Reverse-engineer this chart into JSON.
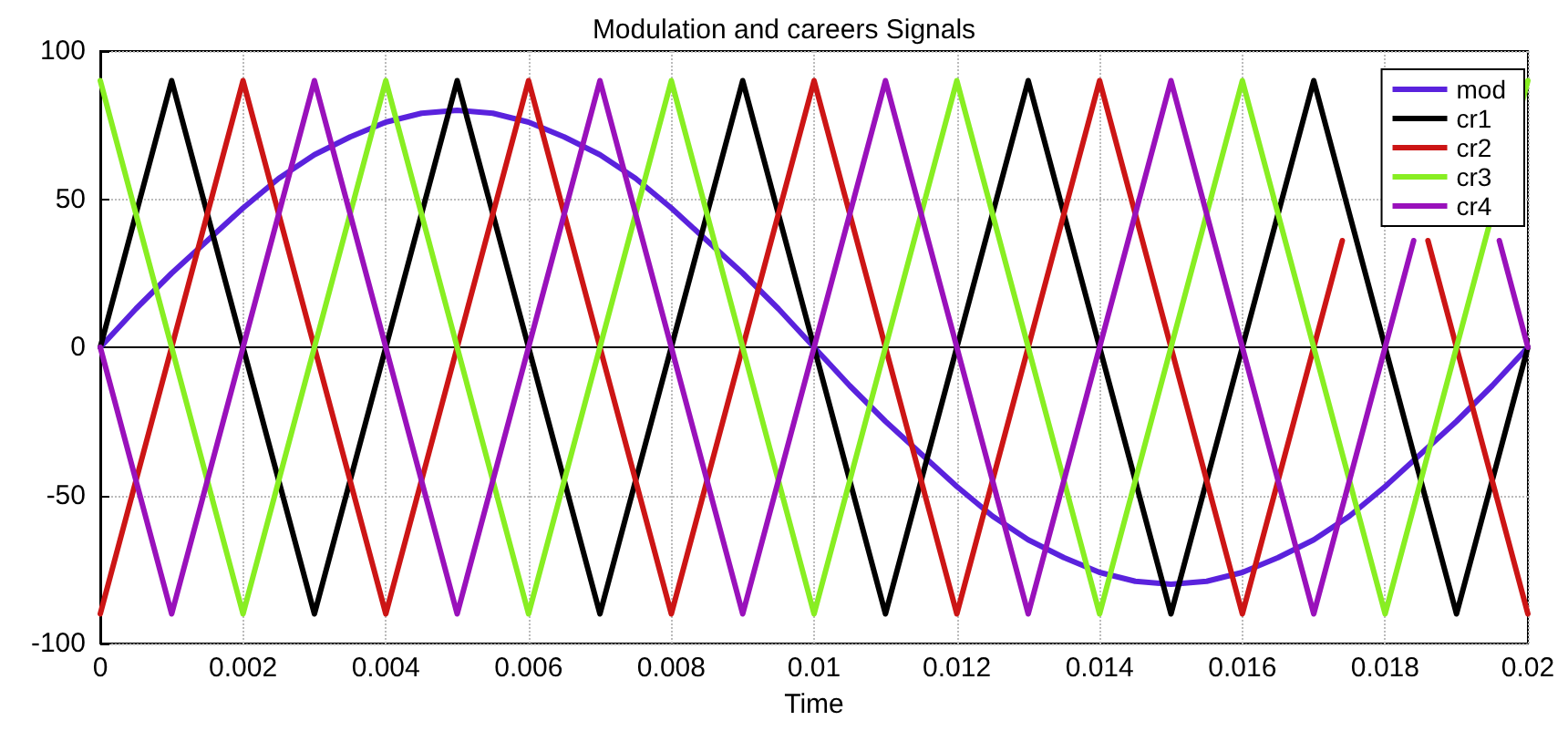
{
  "chart_data": {
    "type": "line",
    "title": "Modulation and careers Signals",
    "xlabel": "Time",
    "xlim": [
      0,
      0.02
    ],
    "xticks": [
      0,
      0.002,
      0.004,
      0.006,
      0.008,
      0.01,
      0.012,
      0.014,
      0.016,
      0.018,
      0.02
    ],
    "ylim": [
      -100,
      100
    ],
    "yticks": [
      -100,
      -50,
      0,
      50,
      100
    ],
    "grid": true,
    "legend": "top right",
    "marker": "none",
    "line_style": "solid",
    "series": [
      {
        "name": "mod",
        "color": "#5a22dd",
        "x": [
          0,
          0.0005,
          0.001,
          0.0015,
          0.002,
          0.0025,
          0.003,
          0.0035,
          0.004,
          0.0045,
          0.005,
          0.0055,
          0.006,
          0.0065,
          0.007,
          0.0075,
          0.008,
          0.0085,
          0.009,
          0.0095,
          0.01,
          0.0105,
          0.011,
          0.0115,
          0.012,
          0.0125,
          0.013,
          0.0135,
          0.014,
          0.0145,
          0.015,
          0.0155,
          0.016,
          0.0165,
          0.017,
          0.0175,
          0.018,
          0.0185,
          0.019,
          0.0195,
          0.02
        ],
        "values": [
          0,
          13,
          25,
          36,
          47,
          57,
          65,
          71,
          76,
          79,
          80,
          79,
          76,
          71,
          65,
          57,
          47,
          36,
          25,
          13,
          0,
          -13,
          -25,
          -36,
          -47,
          -57,
          -65,
          -71,
          -76,
          -79,
          -80,
          -79,
          -76,
          -71,
          -65,
          -57,
          -47,
          -36,
          -25,
          -13,
          0
        ]
      },
      {
        "name": "cr1",
        "color": "#000000",
        "x": [
          0,
          0.001,
          0.003,
          0.005,
          0.007,
          0.009,
          0.011,
          0.013,
          0.015,
          0.017,
          0.019,
          0.02
        ],
        "values": [
          0,
          90,
          -90,
          90,
          -90,
          90,
          -90,
          90,
          -90,
          90,
          -90,
          0
        ]
      },
      {
        "name": "cr2",
        "color": "#cc1515",
        "x": [
          0,
          0.002,
          0.004,
          0.006,
          0.008,
          0.01,
          0.012,
          0.014,
          0.016,
          0.0174,
          0.018,
          0.0186,
          0.02
        ],
        "values": [
          -90,
          90,
          -90,
          90,
          -90,
          90,
          -90,
          90,
          -90,
          36,
          null,
          36,
          -90
        ]
      },
      {
        "name": "cr3",
        "color": "#88ee22",
        "x": [
          0,
          0.002,
          0.004,
          0.006,
          0.008,
          0.01,
          0.012,
          0.014,
          0.016,
          0.018,
          0.02
        ],
        "values": [
          90,
          -90,
          90,
          -90,
          90,
          -90,
          90,
          -90,
          90,
          -90,
          90
        ]
      },
      {
        "name": "cr4",
        "color": "#9911bb",
        "x": [
          0,
          0.001,
          0.003,
          0.005,
          0.007,
          0.009,
          0.011,
          0.013,
          0.015,
          0.017,
          0.0184,
          0.019,
          0.0196,
          0.02
        ],
        "values": [
          0,
          -90,
          90,
          -90,
          90,
          -90,
          90,
          -90,
          90,
          -90,
          36,
          null,
          36,
          0
        ]
      }
    ]
  }
}
